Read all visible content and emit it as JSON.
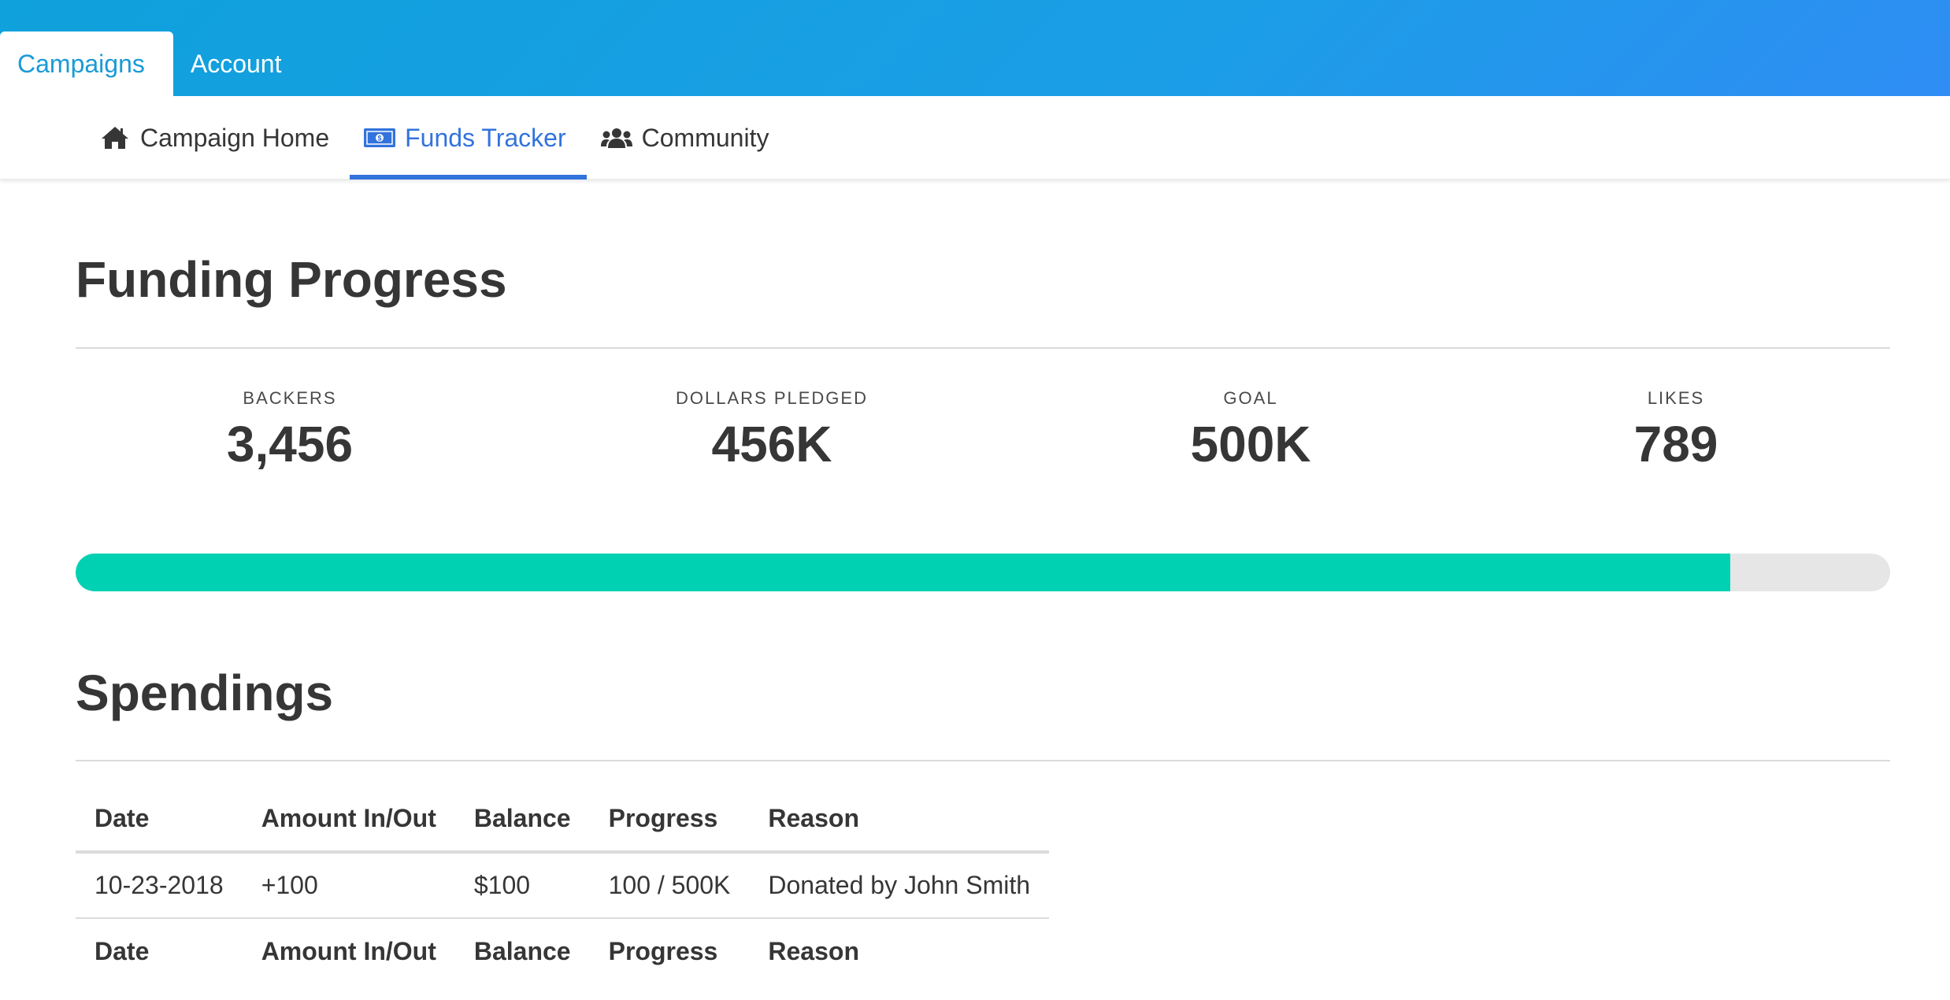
{
  "top_tabs": [
    {
      "label": "Campaigns",
      "active": true
    },
    {
      "label": "Account",
      "active": false
    }
  ],
  "sub_tabs": [
    {
      "label": "Campaign Home",
      "icon": "home-icon",
      "active": false
    },
    {
      "label": "Funds Tracker",
      "icon": "money-bill-icon",
      "active": true
    },
    {
      "label": "Community",
      "icon": "users-icon",
      "active": false
    }
  ],
  "funding": {
    "title": "Funding Progress",
    "stats": [
      {
        "label": "Backers",
        "value": "3,456"
      },
      {
        "label": "Dollars Pledged",
        "value": "456K"
      },
      {
        "label": "Goal",
        "value": "500K"
      },
      {
        "label": "Likes",
        "value": "789"
      }
    ],
    "progress_fraction": 0.912
  },
  "spendings": {
    "title": "Spendings",
    "columns": [
      "Date",
      "Amount In/Out",
      "Balance",
      "Progress",
      "Reason"
    ],
    "rows": [
      [
        "10-23-2018",
        "+100",
        "$100",
        "100 / 500K",
        "Donated by John Smith"
      ]
    ]
  },
  "colors": {
    "accent": "#3273dc",
    "progress": "#00d1b2",
    "topbar_start": "#0fa1dc",
    "topbar_end": "#2f8df4"
  }
}
